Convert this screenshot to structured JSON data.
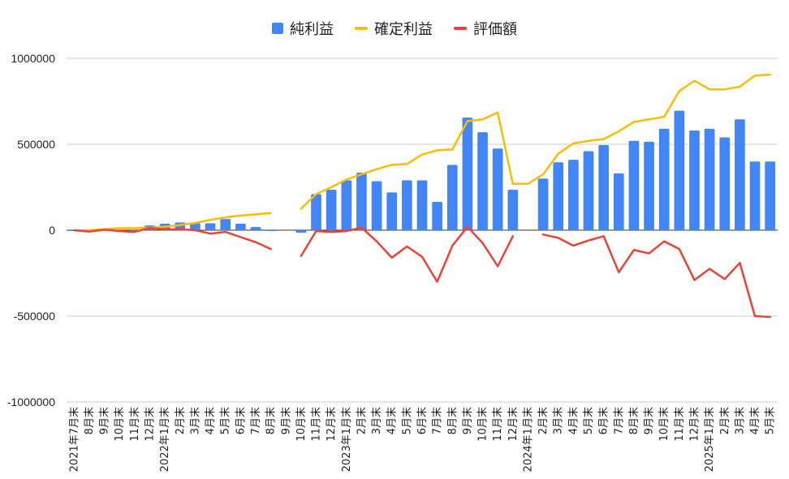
{
  "chart_data": {
    "type": "bar",
    "legend_position": "top",
    "grid": true,
    "ylim": [
      -1000000,
      1000000
    ],
    "yticks": [
      1000000,
      500000,
      0,
      -500000,
      -1000000
    ],
    "ytick_labels": [
      "1000000",
      "500000",
      "0",
      "-500000",
      "-1000000"
    ],
    "categories": [
      "2021年7月末",
      "8月末",
      "9月末",
      "10月末",
      "11月末",
      "12月末",
      "2022年1月末",
      "2月末",
      "3月末",
      "4月末",
      "5月末",
      "6月末",
      "7月末",
      "8月末",
      "9月末",
      "10月末",
      "11月末",
      "12月末",
      "2023年1月末",
      "2月末",
      "3月末",
      "4月末",
      "5月末",
      "6月末",
      "7月末",
      "8月末",
      "9月末",
      "10月末",
      "11月末",
      "12月末",
      "2024年1月末",
      "2月末",
      "3月末",
      "4月末",
      "5月末",
      "6月末",
      "7月末",
      "8月末",
      "9月末",
      "10月末",
      "11月末",
      "12月末",
      "2025年1月末",
      "2月末",
      "3月末",
      "4月末",
      "5月末"
    ],
    "series": [
      {
        "name": "純利益",
        "kind": "bar",
        "color": "#4285f4",
        "values": [
          -2000,
          -6000,
          3000,
          -4000,
          -5000,
          28000,
          38000,
          45000,
          40000,
          40000,
          65000,
          38000,
          18000,
          -5000,
          null,
          -15000,
          210000,
          235000,
          290000,
          335000,
          285000,
          220000,
          290000,
          290000,
          165000,
          380000,
          655000,
          570000,
          475000,
          235000,
          null,
          300000,
          395000,
          410000,
          460000,
          495000,
          330000,
          520000,
          515000,
          590000,
          695000,
          580000,
          590000,
          540000,
          645000,
          400000,
          400000
        ]
      },
      {
        "name": "確定利益",
        "kind": "line",
        "color": "#fbbc04",
        "values": [
          -2000,
          0,
          5000,
          12000,
          12000,
          15000,
          20000,
          30000,
          42000,
          60000,
          75000,
          85000,
          92000,
          100000,
          null,
          125000,
          210000,
          250000,
          295000,
          325000,
          355000,
          380000,
          385000,
          440000,
          465000,
          470000,
          635000,
          645000,
          685000,
          270000,
          270000,
          325000,
          445000,
          505000,
          520000,
          530000,
          575000,
          630000,
          645000,
          660000,
          810000,
          870000,
          820000,
          820000,
          835000,
          900000,
          905000
        ]
      },
      {
        "name": "評価額",
        "kind": "line",
        "color": "#ea4335",
        "values": [
          0,
          -8000,
          3000,
          -5000,
          -10000,
          13000,
          5000,
          5000,
          0,
          -20000,
          -10000,
          -40000,
          -70000,
          -110000,
          null,
          -150000,
          -5000,
          -10000,
          -5000,
          15000,
          -65000,
          -160000,
          -95000,
          -155000,
          -300000,
          -90000,
          20000,
          -75000,
          -210000,
          -35000,
          null,
          -25000,
          -45000,
          -90000,
          -60000,
          -35000,
          -245000,
          -115000,
          -135000,
          -65000,
          -110000,
          -290000,
          -225000,
          -285000,
          -190000,
          -500000,
          -505000
        ]
      }
    ]
  }
}
